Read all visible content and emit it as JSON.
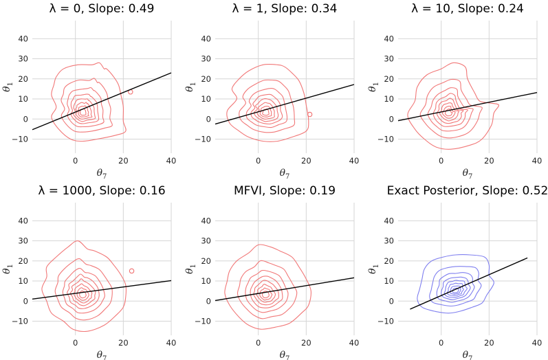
{
  "chart_data": [
    {
      "type": "contour",
      "title": "λ = 0, Slope: 0.49",
      "xlabel": "θ",
      "xlabel_sub": "7",
      "ylabel": "θ",
      "ylabel_sub": "1",
      "xlim": [
        -18,
        40
      ],
      "ylim": [
        -17,
        49
      ],
      "xticks": [
        0,
        20,
        40
      ],
      "yticks": [
        -10,
        0,
        10,
        20,
        30,
        40
      ],
      "contour_color": "#f07070",
      "center": [
        3,
        3
      ],
      "line": {
        "x": [
          -18,
          40
        ],
        "y": [
          -5.3,
          23.0
        ]
      },
      "outer_points": [
        [
          -8,
          6
        ],
        [
          -10,
          12
        ],
        [
          -9,
          17
        ],
        [
          -8,
          21
        ],
        [
          -5,
          25
        ],
        [
          1,
          27
        ],
        [
          7,
          27
        ],
        [
          10,
          28
        ],
        [
          12,
          25
        ],
        [
          13,
          25
        ],
        [
          16,
          21
        ],
        [
          18,
          17
        ],
        [
          19,
          12
        ],
        [
          20,
          6
        ],
        [
          20,
          -1
        ],
        [
          21,
          -6
        ],
        [
          17,
          -8
        ],
        [
          9,
          -10
        ],
        [
          3,
          -11
        ],
        [
          -2,
          -10
        ],
        [
          -7,
          -5
        ],
        [
          -10,
          1
        ]
      ],
      "extra_loops": [
        [
          23,
          13.5
        ]
      ]
    },
    {
      "type": "contour",
      "title": "λ = 1, Slope: 0.34",
      "xlabel": "θ",
      "xlabel_sub": "7",
      "ylabel": "θ",
      "ylabel_sub": "1",
      "xlim": [
        -18,
        40
      ],
      "ylim": [
        -17,
        49
      ],
      "xticks": [
        0,
        20,
        40
      ],
      "yticks": [
        -10,
        0,
        10,
        20,
        30,
        40
      ],
      "contour_color": "#f07070",
      "center": [
        3,
        3
      ],
      "line": {
        "x": [
          -18,
          40
        ],
        "y": [
          -2.5,
          17.2
        ]
      },
      "outer_points": [
        [
          -9,
          10
        ],
        [
          -11,
          15
        ],
        [
          -8,
          20
        ],
        [
          -4,
          24
        ],
        [
          2,
          27
        ],
        [
          8,
          27
        ],
        [
          11,
          26
        ],
        [
          14,
          23
        ],
        [
          17,
          19
        ],
        [
          19,
          13
        ],
        [
          20,
          7
        ],
        [
          21,
          -1
        ],
        [
          20,
          -6
        ],
        [
          14,
          -9
        ],
        [
          8,
          -11
        ],
        [
          2,
          -11
        ],
        [
          -4,
          -9
        ],
        [
          -8,
          -6
        ],
        [
          -12,
          -2
        ],
        [
          -13,
          4
        ]
      ],
      "extra_loops": [
        [
          21.5,
          2.3
        ]
      ]
    },
    {
      "type": "contour",
      "title": "λ = 10, Slope: 0.24",
      "xlabel": "θ",
      "xlabel_sub": "7",
      "ylabel": "θ",
      "ylabel_sub": "1",
      "xlim": [
        -18,
        40
      ],
      "ylim": [
        -17,
        49
      ],
      "xticks": [
        0,
        20,
        40
      ],
      "yticks": [
        -10,
        0,
        10,
        20,
        30,
        40
      ],
      "contour_color": "#f07070",
      "center": [
        3,
        3
      ],
      "line": {
        "x": [
          -18,
          40
        ],
        "y": [
          -0.8,
          13.2
        ]
      },
      "outer_points": [
        [
          -11,
          9
        ],
        [
          -10,
          16
        ],
        [
          -6,
          22
        ],
        [
          0,
          25
        ],
        [
          5,
          28
        ],
        [
          10,
          26
        ],
        [
          11,
          20
        ],
        [
          14,
          13
        ],
        [
          16,
          9
        ],
        [
          20,
          8
        ],
        [
          24,
          7
        ],
        [
          22,
          3
        ],
        [
          21,
          -3
        ],
        [
          17,
          -10
        ],
        [
          12,
          -13
        ],
        [
          4,
          -15
        ],
        [
          -2,
          -14
        ],
        [
          -7,
          -10
        ],
        [
          -11,
          -5
        ],
        [
          -14,
          2
        ]
      ],
      "extra_loops": []
    },
    {
      "type": "contour",
      "title": "λ = 1000, Slope: 0.16",
      "xlabel": "θ",
      "xlabel_sub": "7",
      "ylabel": "θ",
      "ylabel_sub": "1",
      "xlim": [
        -18,
        40
      ],
      "ylim": [
        -17,
        49
      ],
      "xticks": [
        0,
        20,
        40
      ],
      "yticks": [
        -10,
        0,
        10,
        20,
        30,
        40
      ],
      "contour_color": "#f07070",
      "center": [
        3,
        3
      ],
      "line": {
        "x": [
          -18,
          40
        ],
        "y": [
          1.0,
          10.2
        ]
      },
      "outer_points": [
        [
          -8,
          22
        ],
        [
          -3,
          27
        ],
        [
          1,
          30
        ],
        [
          5,
          26
        ],
        [
          8,
          25
        ],
        [
          13,
          22
        ],
        [
          16,
          18
        ],
        [
          19,
          13
        ],
        [
          21,
          8
        ],
        [
          21,
          2
        ],
        [
          20,
          -3
        ],
        [
          17,
          -7
        ],
        [
          12,
          -12
        ],
        [
          5,
          -15
        ],
        [
          -1,
          -14
        ],
        [
          -5,
          -10
        ],
        [
          -10,
          -6
        ],
        [
          -12,
          0
        ],
        [
          -14,
          6
        ],
        [
          -12,
          12
        ],
        [
          -12,
          17
        ]
      ],
      "extra_loops": [
        [
          23.5,
          15
        ]
      ]
    },
    {
      "type": "contour",
      "title": "MFVI, Slope: 0.19",
      "xlabel": "θ",
      "xlabel_sub": "7",
      "ylabel": "θ",
      "ylabel_sub": "1",
      "xlim": [
        -18,
        40
      ],
      "ylim": [
        -17,
        49
      ],
      "xticks": [
        0,
        20,
        40
      ],
      "yticks": [
        -10,
        0,
        10,
        20,
        30,
        40
      ],
      "contour_color": "#f07070",
      "center": [
        3,
        3
      ],
      "line": {
        "x": [
          -18,
          40
        ],
        "y": [
          0.3,
          11.6
        ]
      },
      "outer_points": [
        [
          -9,
          20
        ],
        [
          -4,
          24
        ],
        [
          0,
          28
        ],
        [
          5,
          27
        ],
        [
          9,
          25
        ],
        [
          14,
          22
        ],
        [
          17,
          17
        ],
        [
          20,
          11
        ],
        [
          22,
          5
        ],
        [
          21,
          -2
        ],
        [
          18,
          -6
        ],
        [
          13,
          -11
        ],
        [
          7,
          -13
        ],
        [
          1,
          -14
        ],
        [
          -4,
          -12
        ],
        [
          -8,
          -8
        ],
        [
          -12,
          -2
        ],
        [
          -14,
          4
        ],
        [
          -13,
          10
        ],
        [
          -12,
          15
        ]
      ],
      "extra_loops": []
    },
    {
      "type": "contour",
      "title": "Exact Posterior, Slope: 0.52",
      "xlabel": "θ",
      "xlabel_sub": "7",
      "ylabel": "θ",
      "ylabel_sub": "1",
      "xlim": [
        -18,
        40
      ],
      "ylim": [
        -17,
        49
      ],
      "xticks": [
        0,
        20,
        40
      ],
      "yticks": [
        -10,
        0,
        10,
        20,
        30,
        40
      ],
      "contour_color": "#7777ee",
      "center": [
        6,
        5
      ],
      "line": {
        "x": [
          -13,
          36
        ],
        "y": [
          -4.0,
          21.5
        ]
      },
      "outer_points": [
        [
          -9,
          6
        ],
        [
          -8,
          11
        ],
        [
          -7,
          16
        ],
        [
          -4,
          20
        ],
        [
          1,
          22
        ],
        [
          6,
          23
        ],
        [
          12,
          23
        ],
        [
          18,
          22
        ],
        [
          20,
          18
        ],
        [
          20,
          13
        ],
        [
          22,
          9
        ],
        [
          19,
          3
        ],
        [
          17,
          -1
        ],
        [
          13,
          -3
        ],
        [
          8,
          -5
        ],
        [
          3,
          -6
        ],
        [
          -3,
          -5
        ],
        [
          -8,
          -3
        ],
        [
          -10,
          1
        ]
      ],
      "extra_loops": []
    }
  ]
}
